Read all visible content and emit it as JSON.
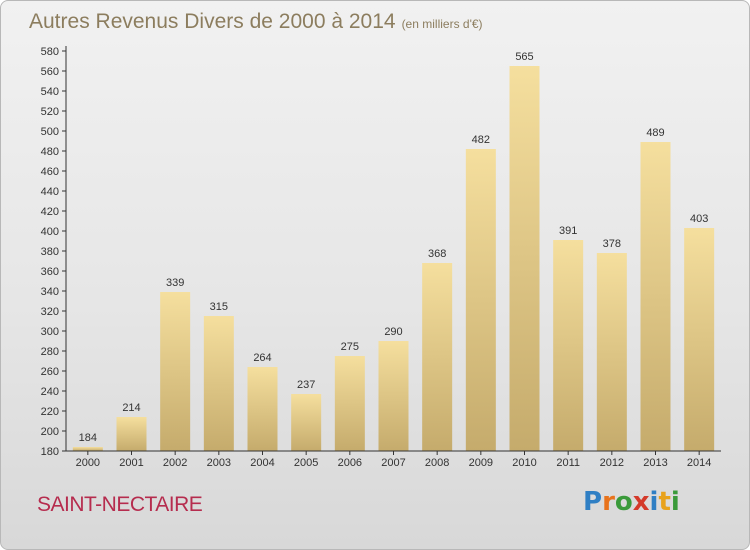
{
  "chart_data": {
    "type": "bar",
    "title": "Autres Revenus Divers de 2000 à 2014",
    "subtitle": "(en milliers d'€)",
    "categories": [
      "2000",
      "2001",
      "2002",
      "2003",
      "2004",
      "2005",
      "2006",
      "2007",
      "2008",
      "2009",
      "2010",
      "2011",
      "2012",
      "2013",
      "2014"
    ],
    "values": [
      184,
      214,
      339,
      315,
      264,
      237,
      275,
      290,
      368,
      482,
      565,
      391,
      378,
      489,
      403
    ],
    "ylim": [
      180,
      580
    ],
    "ytick_step": 20,
    "xlabel": "",
    "ylabel": "",
    "grid": false,
    "bar_color_top": "#f5df9e",
    "bar_color_bottom": "#c5ab6c",
    "axis_color": "#333333"
  },
  "footer": {
    "place": "SAINT-NECTAIRE",
    "place_color": "#b62c4e"
  },
  "logo": {
    "text": "Proxiti",
    "letters": [
      {
        "char": "P",
        "color": "#2f7fc4"
      },
      {
        "char": "r",
        "color": "#e8731c"
      },
      {
        "char": "o",
        "color": "#3a9a3a"
      },
      {
        "char": "x",
        "color": "#d43a2a"
      },
      {
        "char": "i",
        "color": "#2f7fc4"
      },
      {
        "char": "t",
        "color": "#e8a21c"
      },
      {
        "char": "i",
        "color": "#3a9a3a"
      }
    ]
  }
}
